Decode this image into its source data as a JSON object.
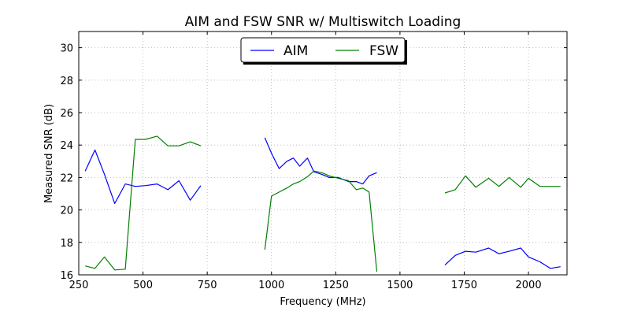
{
  "chart_data": {
    "type": "line",
    "title": "AIM and FSW SNR w/ Multiswitch Loading",
    "xlabel": "Frequency (MHz)",
    "ylabel": "Measured SNR (dB)",
    "xlim": [
      250,
      2150
    ],
    "ylim": [
      16,
      31
    ],
    "x_ticks": [
      250,
      500,
      750,
      1000,
      1250,
      1500,
      1750,
      2000
    ],
    "y_ticks": [
      16,
      18,
      20,
      22,
      24,
      26,
      28,
      30
    ],
    "grid": true,
    "legend_position": "top-center",
    "series": [
      {
        "name": "AIM",
        "color": "#0000ff",
        "segments": [
          [
            [
              275,
              22.4
            ],
            [
              313,
              23.7
            ],
            [
              350,
              22.2
            ],
            [
              390,
              20.4
            ],
            [
              431,
              21.6
            ],
            [
              470,
              21.45
            ],
            [
              510,
              21.5
            ],
            [
              555,
              21.6
            ],
            [
              597,
              21.25
            ],
            [
              640,
              21.8
            ],
            [
              684,
              20.6
            ],
            [
              725,
              21.5
            ]
          ],
          [
            [
              974,
              24.45
            ],
            [
              1000,
              23.5
            ],
            [
              1030,
              22.55
            ],
            [
              1060,
              23.0
            ],
            [
              1085,
              23.2
            ],
            [
              1110,
              22.7
            ],
            [
              1140,
              23.2
            ],
            [
              1165,
              22.35
            ],
            [
              1195,
              22.2
            ],
            [
              1225,
              22.0
            ],
            [
              1260,
              22.0
            ],
            [
              1300,
              21.75
            ],
            [
              1330,
              21.75
            ],
            [
              1355,
              21.6
            ],
            [
              1380,
              22.1
            ],
            [
              1410,
              22.3
            ]
          ],
          [
            [
              1675,
              16.6
            ],
            [
              1715,
              17.2
            ],
            [
              1755,
              17.45
            ],
            [
              1795,
              17.4
            ],
            [
              1845,
              17.65
            ],
            [
              1885,
              17.3
            ],
            [
              1925,
              17.45
            ],
            [
              1970,
              17.65
            ],
            [
              2000,
              17.1
            ],
            [
              2045,
              16.8
            ],
            [
              2085,
              16.4
            ],
            [
              2125,
              16.5
            ]
          ]
        ]
      },
      {
        "name": "FSW",
        "color": "#008000",
        "segments": [
          [
            [
              275,
              16.55
            ],
            [
              313,
              16.4
            ],
            [
              350,
              17.1
            ],
            [
              390,
              16.3
            ],
            [
              431,
              16.35
            ],
            [
              470,
              24.35
            ],
            [
              510,
              24.35
            ],
            [
              555,
              24.55
            ],
            [
              597,
              23.95
            ],
            [
              640,
              23.95
            ],
            [
              684,
              24.2
            ],
            [
              725,
              23.95
            ]
          ],
          [
            [
              974,
              17.55
            ],
            [
              1000,
              20.85
            ],
            [
              1030,
              21.1
            ],
            [
              1060,
              21.35
            ],
            [
              1085,
              21.6
            ],
            [
              1110,
              21.75
            ],
            [
              1140,
              22.05
            ],
            [
              1165,
              22.4
            ],
            [
              1195,
              22.3
            ],
            [
              1225,
              22.1
            ],
            [
              1260,
              21.95
            ],
            [
              1300,
              21.8
            ],
            [
              1330,
              21.25
            ],
            [
              1355,
              21.35
            ],
            [
              1380,
              21.1
            ],
            [
              1410,
              16.2
            ]
          ],
          [
            [
              1675,
              21.05
            ],
            [
              1715,
              21.25
            ],
            [
              1755,
              22.1
            ],
            [
              1795,
              21.4
            ],
            [
              1845,
              21.95
            ],
            [
              1885,
              21.45
            ],
            [
              1925,
              22.0
            ],
            [
              1970,
              21.4
            ],
            [
              2000,
              21.95
            ],
            [
              2045,
              21.45
            ],
            [
              2085,
              21.45
            ],
            [
              2125,
              21.45
            ]
          ]
        ]
      }
    ]
  }
}
